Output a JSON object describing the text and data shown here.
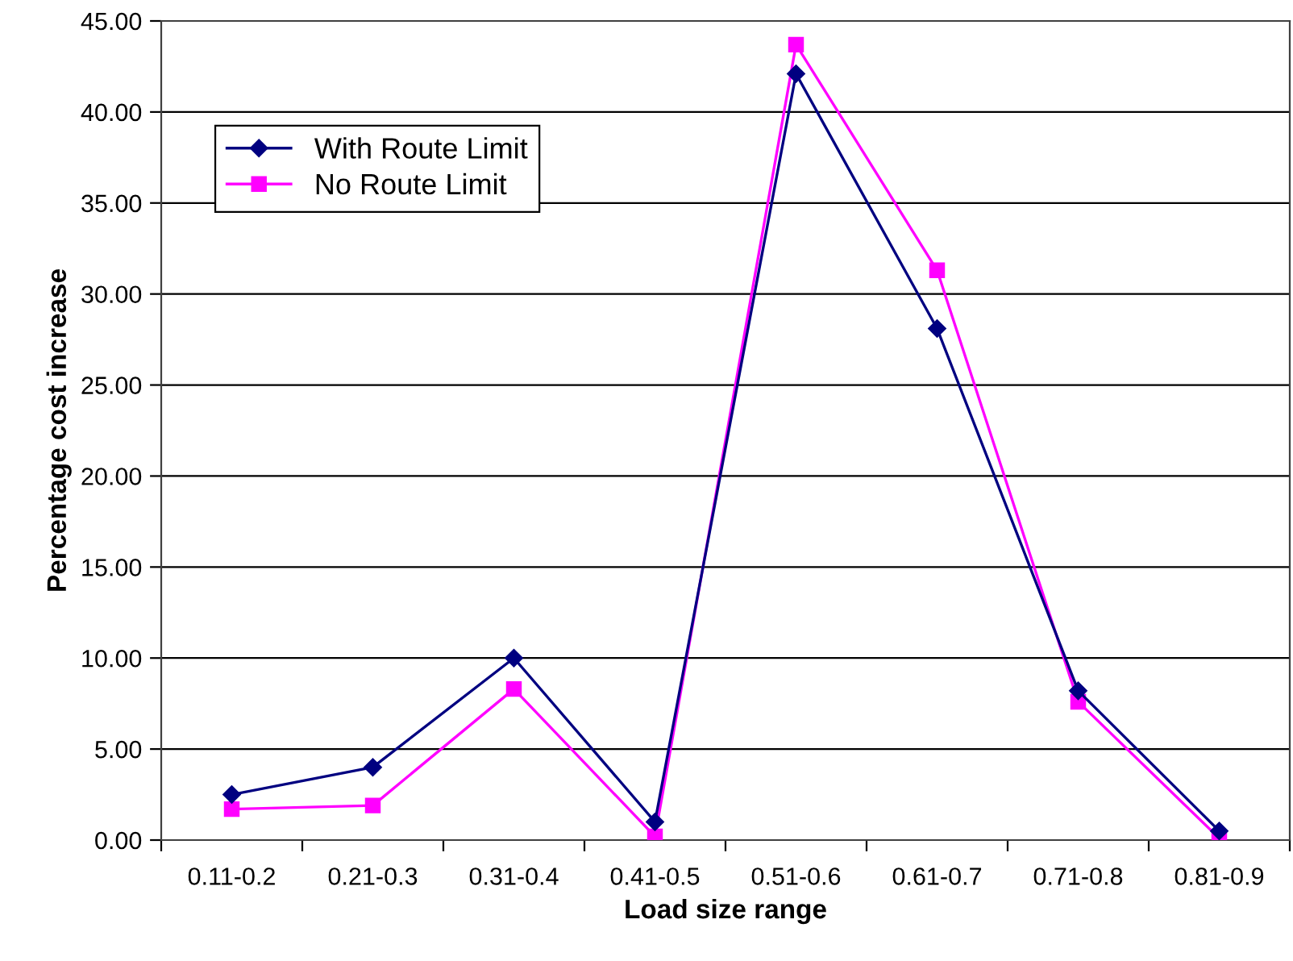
{
  "chart_data": {
    "type": "line",
    "xlabel": "Load size range",
    "ylabel": "Percentage cost increase",
    "categories": [
      "0.11-0.2",
      "0.21-0.3",
      "0.31-0.4",
      "0.41-0.5",
      "0.51-0.6",
      "0.61-0.7",
      "0.71-0.8",
      "0.81-0.9"
    ],
    "series": [
      {
        "name": "With Route Limit",
        "color": "#000080",
        "marker": "diamond",
        "values": [
          2.5,
          4.0,
          10.0,
          1.0,
          42.1,
          28.1,
          8.2,
          0.5
        ]
      },
      {
        "name": "No Route Limit",
        "color": "#ff00ff",
        "marker": "square",
        "values": [
          1.7,
          1.9,
          8.3,
          0.2,
          43.7,
          31.3,
          7.6,
          0.1
        ]
      }
    ],
    "ylim": [
      0,
      45
    ],
    "yticks": [
      {
        "value": 0,
        "label": "0.00"
      },
      {
        "value": 5,
        "label": "5.00"
      },
      {
        "value": 10,
        "label": "10.00"
      },
      {
        "value": 15,
        "label": "15.00"
      },
      {
        "value": 20,
        "label": "20.00"
      },
      {
        "value": 25,
        "label": "25.00"
      },
      {
        "value": 30,
        "label": "30.00"
      },
      {
        "value": 35,
        "label": "35.00"
      },
      {
        "value": 40,
        "label": "40.00"
      },
      {
        "value": 45,
        "label": "45.00"
      }
    ],
    "grid": "y",
    "legend": "top left",
    "line_style": "solid"
  }
}
